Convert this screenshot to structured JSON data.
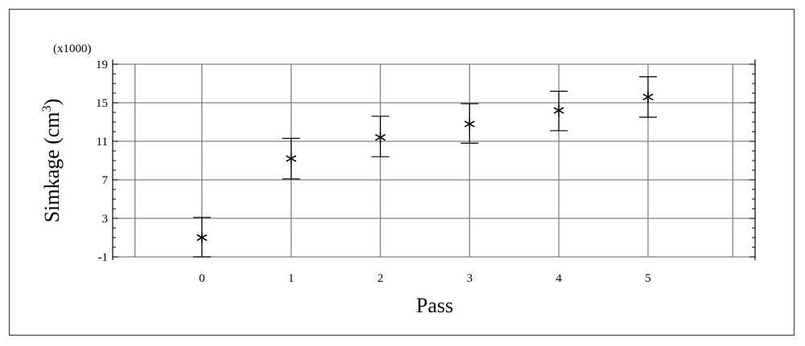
{
  "chart_data": {
    "type": "scatter",
    "xlabel": "Pass",
    "ylabel": "Simkage (cm",
    "ylabel_superscript": "3",
    "ylabel_suffix": ")",
    "y_multiplier": "(x1000)",
    "x_ticks": [
      "0",
      "1",
      "2",
      "3",
      "4",
      "5"
    ],
    "y_ticks": [
      "19",
      "15",
      "11",
      "7",
      "3",
      "-1"
    ],
    "xlim": [
      -1,
      6.2
    ],
    "ylim": [
      -1,
      19
    ],
    "grid": true,
    "points": [
      {
        "x": 0,
        "y": 1.0,
        "y_low": -1.0,
        "y_high": 3.1
      },
      {
        "x": 1,
        "y": 9.2,
        "y_low": 7.1,
        "y_high": 11.3
      },
      {
        "x": 2,
        "y": 11.4,
        "y_low": 9.4,
        "y_high": 13.6
      },
      {
        "x": 3,
        "y": 12.8,
        "y_low": 10.8,
        "y_high": 14.9
      },
      {
        "x": 4,
        "y": 14.2,
        "y_low": 12.1,
        "y_high": 16.2
      },
      {
        "x": 5,
        "y": 15.6,
        "y_low": 13.5,
        "y_high": 17.7
      }
    ],
    "marker": "asterisk",
    "color": "#000000",
    "grid_color": "#808080"
  }
}
